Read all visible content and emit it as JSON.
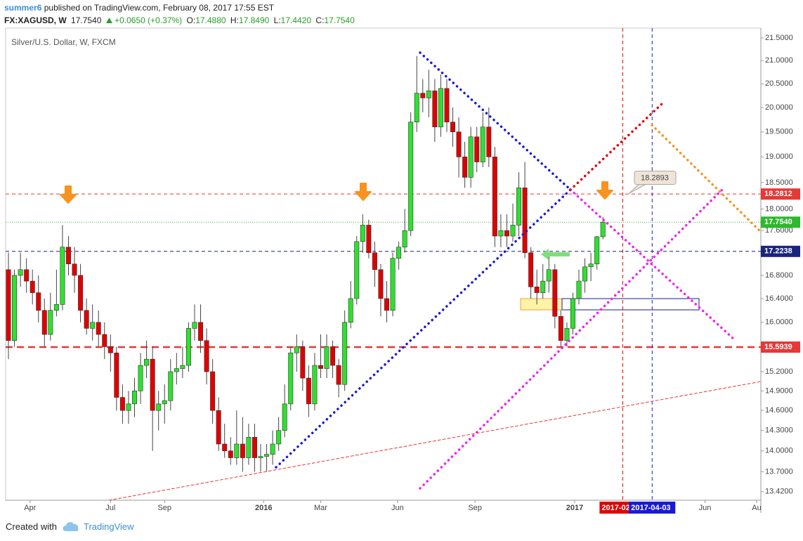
{
  "header": {
    "author": "summer6",
    "published": "published on TradingView.com, February 08, 2017 17:55 EST",
    "symbol": "FX:XAGUSD, W",
    "last": "17.7540",
    "change": "+0.0650 (+0.37%)",
    "open_label": "O:",
    "open": "17.4880",
    "high_label": "H:",
    "high": "17.8490",
    "low_label": "L:",
    "low": "17.4420",
    "close_label": "C:",
    "close": "17.7540"
  },
  "chart_data": {
    "type": "candlestick",
    "title": "Silver/U.S. Dollar, W, FXCM",
    "log_scale": true,
    "grid": false,
    "up_color": "#2fe02f",
    "down_color": "#e00000",
    "xlim": [
      -0.47,
      125.3
    ],
    "xticks": [
      {
        "value": 3.6,
        "label": "Apr"
      },
      {
        "value": 17,
        "label": "Jul"
      },
      {
        "value": 26,
        "label": "Sep"
      },
      {
        "value": 42.5,
        "label": "2016"
      },
      {
        "value": 52,
        "label": "Mar"
      },
      {
        "value": 64.8,
        "label": "Jun"
      },
      {
        "value": 77.7,
        "label": "Sep"
      },
      {
        "value": 94.3,
        "label": "2017"
      },
      {
        "value": 116,
        "label": "Jun"
      },
      {
        "value": 124.6,
        "label": "Au"
      }
    ],
    "ylim": [
      13.3,
      21.72
    ],
    "yticks": [
      {
        "value": 21.5,
        "label": "21.5000"
      },
      {
        "value": 21,
        "label": "21.0000"
      },
      {
        "value": 20.5,
        "label": "20.5000"
      },
      {
        "value": 20,
        "label": "20.0000"
      },
      {
        "value": 19.5,
        "label": "19.5000"
      },
      {
        "value": 19,
        "label": "19.0000"
      },
      {
        "value": 18.5,
        "label": "18.5000"
      },
      {
        "value": 18,
        "label": "18.0000"
      },
      {
        "value": 17.6,
        "label": "17.6000"
      },
      {
        "value": 16.8,
        "label": "16.8000"
      },
      {
        "value": 16.4,
        "label": "16.4000"
      },
      {
        "value": 16,
        "label": "16.0000"
      },
      {
        "value": 15.2,
        "label": "15.2000"
      },
      {
        "value": 14.9,
        "label": "14.9000"
      },
      {
        "value": 14.6,
        "label": "14.6000"
      },
      {
        "value": 14.3,
        "label": "14.3000"
      },
      {
        "value": 14,
        "label": "14.0000"
      },
      {
        "value": 13.7,
        "label": "13.7000"
      },
      {
        "value": 13.42,
        "label": "13.4200"
      }
    ],
    "price_lines": [
      {
        "value": 18.2812,
        "color": "#e53935",
        "style": "dashed"
      },
      {
        "value": 17.754,
        "label": "17.7540",
        "color": "#2db82d",
        "style": "dotted"
      },
      {
        "value": 17.2238,
        "color": "#1a237e",
        "style": "dashed"
      },
      {
        "value": 15.5939,
        "color": "#e53935",
        "style": "bold-dashed"
      }
    ],
    "vlines": [
      {
        "value": 102.3,
        "label": "2017-02",
        "color": "#e00000"
      },
      {
        "value": 107.2,
        "label": "2017-04-03",
        "color": "#1a1ad6"
      }
    ],
    "callout": {
      "value": 18.2893
    },
    "candles": {
      "open": [
        16.9,
        15.7,
        16.8,
        16.9,
        16.7,
        16.5,
        16.2,
        15.8,
        16.2,
        16.3,
        17.3,
        17.0,
        16.8,
        16.2,
        15.9,
        16.0,
        15.8,
        15.6,
        15.5,
        14.8,
        14.6,
        14.7,
        14.9,
        15.3,
        15.4,
        14.6,
        14.7,
        14.75,
        15.2,
        15.25,
        15.3,
        15.9,
        16.0,
        15.7,
        15.2,
        14.6,
        14.1,
        14.0,
        13.9,
        14.1,
        13.9,
        14.2,
        13.9,
        13.92,
        13.95,
        14.1,
        14.3,
        14.7,
        15.5,
        15.6,
        15.1,
        14.7,
        15.3,
        15.25,
        15.6,
        15.3,
        15.0,
        16.0,
        16.4,
        17.4,
        17.7,
        17.2,
        16.9,
        16.4,
        16.2,
        17.1,
        17.3,
        17.6,
        19.7,
        20.3,
        20.2,
        20.35,
        19.6,
        20.4,
        19.7,
        19.5,
        19.0,
        18.6,
        19.4,
        18.9,
        19.6,
        19.0,
        17.5,
        17.6,
        17.5,
        17.7,
        18.4,
        17.2,
        16.6,
        16.5,
        16.7,
        16.9,
        16.1,
        15.7,
        15.9,
        16.4,
        16.7,
        16.95,
        17.0,
        17.488
      ],
      "high": [
        17.2,
        16.9,
        17.2,
        17.1,
        16.9,
        16.8,
        16.4,
        16.5,
        16.9,
        17.7,
        17.5,
        17.3,
        17.0,
        16.4,
        16.3,
        16.2,
        16.0,
        15.8,
        15.6,
        15.0,
        14.9,
        15.1,
        15.5,
        15.7,
        15.6,
        14.9,
        15.0,
        15.4,
        15.5,
        15.6,
        16.0,
        16.3,
        16.3,
        15.9,
        15.4,
        14.8,
        14.4,
        14.2,
        14.6,
        14.5,
        14.4,
        14.4,
        14.1,
        14.1,
        14.3,
        14.5,
        15.0,
        15.6,
        15.8,
        15.7,
        15.3,
        15.5,
        15.8,
        15.8,
        15.7,
        15.4,
        16.2,
        16.7,
        17.5,
        17.9,
        17.8,
        17.4,
        17.0,
        16.7,
        17.2,
        17.4,
        18.0,
        19.9,
        21.1,
        20.6,
        20.8,
        20.6,
        20.7,
        20.6,
        20.0,
        19.8,
        19.3,
        19.6,
        19.6,
        19.9,
        20.0,
        19.2,
        17.9,
        17.9,
        18.1,
        18.7,
        18.9,
        17.3,
        16.9,
        17.0,
        17.2,
        17.0,
        16.2,
        16.0,
        16.5,
        16.9,
        17.1,
        17.2,
        17.5,
        17.849
      ],
      "low": [
        15.4,
        15.6,
        16.6,
        16.5,
        16.3,
        16.0,
        15.6,
        15.7,
        16.1,
        16.2,
        16.8,
        16.5,
        16.0,
        15.8,
        15.7,
        15.6,
        15.4,
        15.2,
        14.6,
        14.4,
        14.4,
        14.5,
        14.7,
        15.1,
        14.0,
        14.3,
        14.4,
        14.6,
        15.0,
        15.1,
        15.2,
        15.7,
        15.5,
        15.0,
        14.4,
        14.0,
        13.9,
        13.8,
        13.8,
        13.7,
        13.8,
        13.7,
        13.7,
        13.7,
        13.8,
        14.0,
        14.2,
        14.6,
        15.2,
        14.9,
        14.5,
        14.6,
        15.1,
        15.1,
        15.1,
        14.8,
        14.9,
        15.9,
        16.3,
        17.2,
        17.1,
        16.6,
        16.1,
        16.0,
        16.1,
        16.9,
        17.2,
        17.5,
        19.5,
        19.9,
        19.8,
        19.3,
        19.4,
        19.5,
        19.2,
        18.6,
        18.4,
        18.4,
        18.7,
        18.8,
        18.8,
        17.3,
        17.3,
        17.3,
        17.4,
        17.5,
        17.1,
        16.4,
        16.3,
        16.4,
        16.5,
        15.9,
        15.6,
        15.6,
        15.8,
        16.3,
        16.5,
        16.7,
        16.9,
        17.442
      ],
      "close": [
        15.7,
        16.8,
        16.9,
        16.7,
        16.5,
        16.2,
        15.8,
        16.2,
        16.3,
        17.3,
        17.0,
        16.8,
        16.2,
        15.9,
        16.0,
        15.8,
        15.6,
        15.5,
        14.8,
        14.6,
        14.7,
        14.9,
        15.3,
        15.4,
        14.6,
        14.7,
        14.75,
        15.2,
        15.25,
        15.3,
        15.9,
        16.0,
        15.7,
        15.2,
        14.6,
        14.1,
        14.0,
        13.9,
        14.1,
        13.9,
        14.2,
        13.9,
        13.92,
        13.95,
        14.1,
        14.3,
        14.7,
        15.5,
        15.6,
        15.1,
        14.7,
        15.3,
        15.25,
        15.6,
        15.3,
        15.0,
        16.0,
        16.4,
        17.4,
        17.7,
        17.2,
        16.9,
        16.4,
        16.2,
        17.1,
        17.3,
        17.6,
        19.7,
        20.3,
        20.2,
        20.35,
        19.6,
        20.4,
        19.7,
        19.5,
        19.0,
        18.6,
        19.4,
        18.9,
        19.6,
        19.0,
        17.5,
        17.6,
        17.5,
        17.7,
        18.4,
        17.2,
        16.6,
        16.5,
        16.7,
        16.9,
        16.1,
        15.7,
        15.9,
        16.4,
        16.7,
        16.95,
        17.0,
        17.488,
        17.754
      ]
    }
  },
  "footer": {
    "created": "Created with",
    "brand": "TradingView"
  }
}
